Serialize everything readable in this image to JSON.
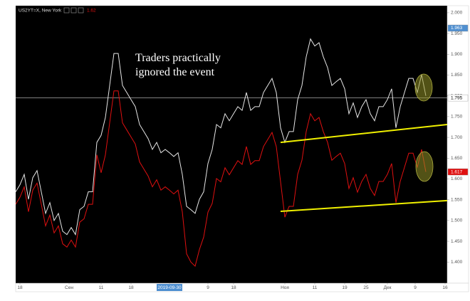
{
  "chart_data": {
    "type": "line",
    "legend_title": "US2YT=X, New York",
    "legend_value": 1.62,
    "annotation": [
      "Traders practically",
      "ignored the event"
    ],
    "xlim": [
      0,
      101
    ],
    "ylim": [
      1.349,
      2.017
    ],
    "yticks": [
      {
        "value": 2.0,
        "label": "2.000"
      },
      {
        "value": 1.95,
        "label": "1.950"
      },
      {
        "value": 1.9,
        "label": "1.900"
      },
      {
        "value": 1.85,
        "label": "1.850"
      },
      {
        "value": 1.8,
        "label": "1.800"
      },
      {
        "value": 1.75,
        "label": "1.750"
      },
      {
        "value": 1.7,
        "label": "1.700"
      },
      {
        "value": 1.65,
        "label": "1.650"
      },
      {
        "value": 1.6,
        "label": "1.600"
      },
      {
        "value": 1.55,
        "label": "1.550"
      },
      {
        "value": 1.5,
        "label": "1.500"
      },
      {
        "value": 1.45,
        "label": "1.450"
      },
      {
        "value": 1.4,
        "label": "1.400"
      }
    ],
    "xticks": [
      {
        "value": 1,
        "label": "18"
      },
      {
        "value": 12.5,
        "label": "Сен"
      },
      {
        "value": 20,
        "label": "11"
      },
      {
        "value": 27,
        "label": "18"
      },
      {
        "value": 36,
        "label": "2019-09-30"
      },
      {
        "value": 45,
        "label": "9"
      },
      {
        "value": 51,
        "label": "18"
      },
      {
        "value": 63,
        "label": "Ноя"
      },
      {
        "value": 70,
        "label": "11"
      },
      {
        "value": 77,
        "label": "19"
      },
      {
        "value": 82,
        "label": "25"
      },
      {
        "value": 87,
        "label": "Дек"
      },
      {
        "value": 93.5,
        "label": "9"
      },
      {
        "value": 100.5,
        "label": "16"
      }
    ],
    "series": [
      {
        "color": "#e6e6e6",
        "values": [
          1.569,
          1.586,
          1.611,
          1.551,
          1.603,
          1.62,
          1.569,
          1.517,
          1.543,
          1.5,
          1.517,
          1.474,
          1.466,
          1.483,
          1.466,
          1.526,
          1.534,
          1.569,
          1.569,
          1.688,
          1.705,
          1.748,
          1.825,
          1.902,
          1.902,
          1.825,
          1.808,
          1.791,
          1.774,
          1.731,
          1.714,
          1.697,
          1.671,
          1.688,
          1.663,
          1.671,
          1.663,
          1.654,
          1.663,
          1.611,
          1.534,
          1.526,
          1.517,
          1.551,
          1.569,
          1.637,
          1.671,
          1.731,
          1.723,
          1.757,
          1.74,
          1.757,
          1.774,
          1.765,
          1.808,
          1.765,
          1.774,
          1.774,
          1.808,
          1.825,
          1.842,
          1.808,
          1.723,
          1.688,
          1.714,
          1.714,
          1.791,
          1.825,
          1.894,
          1.937,
          1.92,
          1.928,
          1.894,
          1.868,
          1.825,
          1.834,
          1.842,
          1.817,
          1.757,
          1.783,
          1.748,
          1.774,
          1.791,
          1.757,
          1.74,
          1.774,
          1.774,
          1.791,
          1.817,
          1.723,
          1.774,
          1.808,
          1.842,
          1.842,
          1.808,
          1.851,
          1.8
        ]
      },
      {
        "color": "#e01010",
        "values": [
          1.539,
          1.556,
          1.581,
          1.521,
          1.573,
          1.59,
          1.539,
          1.487,
          1.513,
          1.47,
          1.487,
          1.444,
          1.436,
          1.453,
          1.436,
          1.496,
          1.504,
          1.539,
          1.539,
          1.658,
          1.615,
          1.658,
          1.735,
          1.812,
          1.812,
          1.735,
          1.718,
          1.701,
          1.684,
          1.641,
          1.624,
          1.607,
          1.581,
          1.598,
          1.573,
          1.581,
          1.573,
          1.564,
          1.573,
          1.521,
          1.42,
          1.4,
          1.39,
          1.43,
          1.46,
          1.52,
          1.541,
          1.601,
          1.593,
          1.627,
          1.61,
          1.627,
          1.644,
          1.635,
          1.678,
          1.635,
          1.644,
          1.644,
          1.678,
          1.695,
          1.712,
          1.678,
          1.593,
          1.508,
          1.534,
          1.534,
          1.611,
          1.645,
          1.714,
          1.757,
          1.74,
          1.748,
          1.714,
          1.688,
          1.645,
          1.654,
          1.662,
          1.637,
          1.577,
          1.603,
          1.568,
          1.594,
          1.611,
          1.577,
          1.56,
          1.594,
          1.594,
          1.611,
          1.637,
          1.543,
          1.594,
          1.628,
          1.662,
          1.662,
          1.628,
          1.671,
          1.617
        ]
      }
    ],
    "price_line": 1.795,
    "price_labels": [
      {
        "value": 1.963,
        "color": "#4f8fd0"
      },
      {
        "value": 1.795,
        "color": "#ffffff"
      },
      {
        "value": 1.617,
        "color": "#e01010"
      }
    ],
    "trendlines": [
      {
        "color": "#f0f000",
        "x": [
          62,
          101
        ],
        "y": [
          1.688,
          1.731
        ]
      },
      {
        "color": "#f0f000",
        "x": [
          62,
          101
        ],
        "y": [
          1.522,
          1.548
        ]
      }
    ]
  }
}
